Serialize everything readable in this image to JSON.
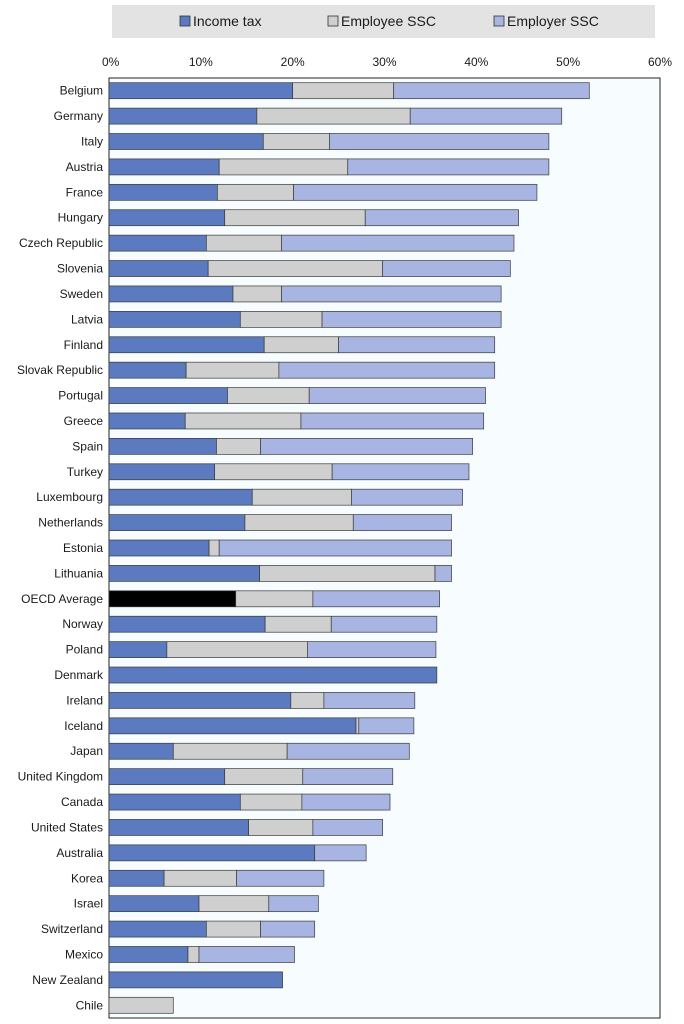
{
  "chart_data": {
    "type": "bar",
    "orientation": "horizontal",
    "stacked": true,
    "xlim": [
      0,
      60
    ],
    "x_ticks": [
      "0%",
      "10%",
      "20%",
      "30%",
      "40%",
      "50%",
      "60%"
    ],
    "legend_position": "top",
    "categories": [
      "Belgium",
      "Germany",
      "Italy",
      "Austria",
      "France",
      "Hungary",
      "Czech Republic",
      "Slovenia",
      "Sweden",
      "Latvia",
      "Finland",
      "Slovak Republic",
      "Portugal",
      "Greece",
      "Spain",
      "Turkey",
      "Luxembourg",
      "Netherlands",
      "Estonia",
      "Lithuania",
      "OECD Average",
      "Norway",
      "Poland",
      "Denmark",
      "Ireland",
      "Iceland",
      "Japan",
      "United Kingdom",
      "Canada",
      "United States",
      "Australia",
      "Korea",
      "Israel",
      "Switzerland",
      "Mexico",
      "New Zealand",
      "Chile"
    ],
    "highlight": {
      "category": "OECD Average",
      "color": "#000000"
    },
    "series": [
      {
        "name": "Income tax",
        "color": "#5b7abf",
        "values": [
          20.0,
          16.1,
          16.8,
          12.0,
          11.8,
          12.6,
          10.6,
          10.8,
          13.5,
          14.3,
          16.9,
          8.4,
          12.9,
          8.3,
          11.7,
          11.5,
          15.6,
          14.8,
          10.9,
          16.4,
          13.8,
          17.0,
          6.3,
          35.7,
          19.8,
          26.9,
          7.0,
          12.6,
          14.3,
          15.2,
          22.4,
          6.0,
          9.8,
          10.6,
          8.6,
          18.9,
          0.0
        ]
      },
      {
        "name": "Employee SSC",
        "color": "#cfcfcf",
        "values": [
          11.0,
          16.7,
          7.2,
          14.0,
          8.3,
          15.3,
          8.2,
          19.0,
          5.3,
          8.9,
          8.1,
          10.1,
          8.9,
          12.6,
          4.8,
          12.8,
          10.8,
          11.8,
          1.1,
          19.1,
          8.4,
          7.2,
          15.3,
          0.0,
          3.6,
          0.3,
          12.4,
          8.5,
          6.7,
          7.0,
          0.0,
          7.9,
          7.6,
          5.9,
          1.2,
          0.0,
          7.0
        ]
      },
      {
        "name": "Employer SSC",
        "color": "#a8b4e2",
        "values": [
          21.3,
          16.5,
          23.9,
          21.9,
          26.5,
          16.7,
          25.3,
          13.9,
          23.9,
          19.5,
          17.0,
          23.5,
          19.2,
          19.9,
          23.1,
          14.9,
          12.1,
          10.7,
          25.3,
          1.8,
          13.8,
          11.5,
          14.0,
          0.0,
          9.9,
          6.0,
          13.3,
          9.8,
          9.6,
          7.6,
          5.6,
          9.5,
          5.4,
          5.9,
          10.4,
          0.0,
          0.0
        ]
      }
    ]
  }
}
